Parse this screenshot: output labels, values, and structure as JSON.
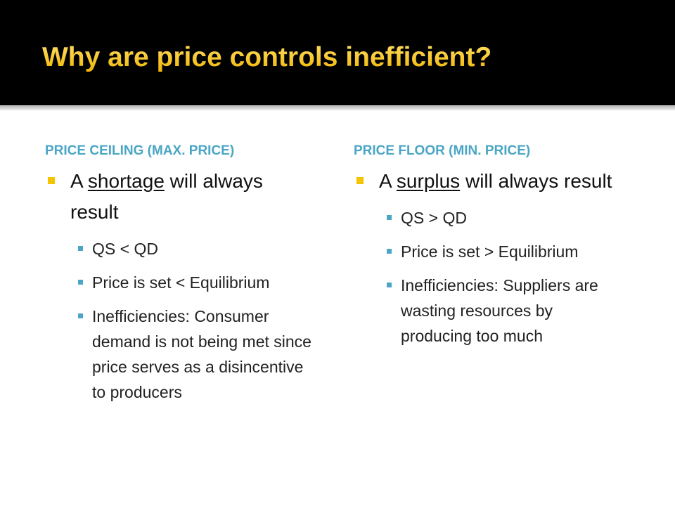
{
  "title": "Why are price controls inefficient?",
  "columns": [
    {
      "heading": "PRICE CEILING (MAX. PRICE)",
      "bullet": {
        "before": "A ",
        "underlined": "shortage",
        "after": " will always result"
      },
      "subbullets": [
        "QS < QD",
        "Price is set < Equilibrium",
        "Inefficiencies:  Consumer demand is not being met since price serves as a disincentive to producers"
      ]
    },
    {
      "heading": "PRICE FLOOR (MIN. PRICE)",
      "bullet": {
        "before": "A ",
        "underlined": "surplus",
        "after": " will always result"
      },
      "subbullets": [
        "QS > QD",
        "Price is set > Equilibrium",
        "Inefficiencies:  Suppliers are wasting resources by producing too much"
      ]
    }
  ]
}
